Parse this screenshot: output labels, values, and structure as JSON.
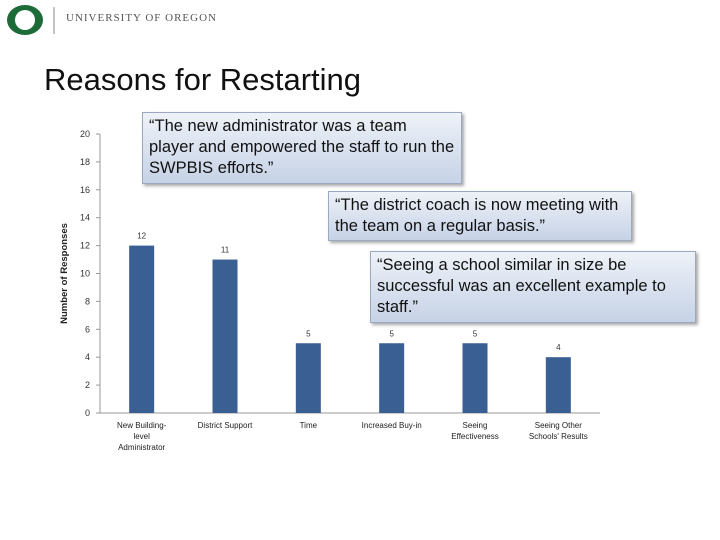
{
  "header": {
    "logo_icon": "university-of-oregon-o-logo",
    "logo_text": "UNIVERSITY OF OREGON",
    "brand_color": "#1e6b3a"
  },
  "slide": {
    "title": "Reasons for Restarting"
  },
  "quotes": [
    "“The new administrator was a team player and empowered the staff to run the SWPBIS efforts.”",
    "“The district coach is now meeting with the team on a regular basis.”",
    "“Seeing a school similar in size be successful was an excellent example to staff.”"
  ],
  "chart_data": {
    "type": "bar",
    "categories": [
      [
        "New Building-",
        "level",
        "Administrator"
      ],
      [
        "District Support"
      ],
      [
        "Time"
      ],
      [
        "Increased Buy-in"
      ],
      [
        "Seeing",
        "Effectiveness"
      ],
      [
        "Seeing Other",
        "Schools' Results"
      ]
    ],
    "values": [
      12,
      11,
      5,
      5,
      5,
      4
    ],
    "data_labels": [
      "12",
      "11",
      "5",
      "5",
      "5",
      "4"
    ],
    "ylabel": "Number of Responses",
    "xlabel": "",
    "ylim": [
      0,
      20
    ],
    "yticks": [
      0,
      2,
      4,
      6,
      8,
      10,
      12,
      14,
      16,
      18,
      20
    ],
    "bar_color": "#3a5f93",
    "grid": false
  }
}
